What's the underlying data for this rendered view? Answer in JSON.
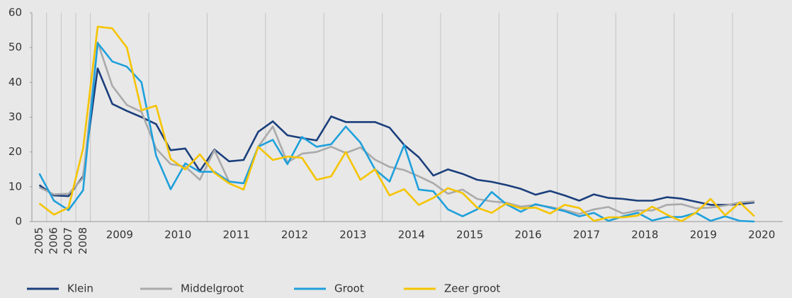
{
  "chart_data": {
    "type": "line",
    "categories": [
      "2005",
      "2006",
      "2007",
      "2008",
      "2009",
      null,
      null,
      null,
      "2010",
      null,
      null,
      null,
      "2011",
      null,
      null,
      null,
      "2012",
      null,
      null,
      null,
      "2013",
      null,
      null,
      null,
      "2014",
      null,
      null,
      null,
      "2015",
      null,
      null,
      null,
      "2016",
      null,
      null,
      null,
      "2017",
      null,
      null,
      null,
      "2018",
      null,
      null,
      null,
      "2019",
      null,
      null,
      null,
      "2020",
      null
    ],
    "series": [
      {
        "name": "Klein",
        "color": "#1b3f7c",
        "values": [
          10.5,
          7.5,
          7.3,
          13,
          44,
          33.8,
          31.8,
          30,
          28,
          20.5,
          21,
          14.5,
          20.7,
          17.3,
          17.7,
          25.8,
          28.8,
          24.8,
          24,
          23.3,
          30.2,
          28.6,
          28.6,
          28.6,
          27,
          22,
          18.5,
          13.2,
          15,
          13.7,
          12,
          11.4,
          10.5,
          9.4,
          7.7,
          8.8,
          7.5,
          6,
          7.8,
          6.8,
          6.5,
          6,
          6,
          7,
          6.6,
          5.7,
          4.8,
          4.8,
          5,
          5.5
        ]
      },
      {
        "name": "Middelgroot",
        "color": "#aaaaaa",
        "values": [
          9.8,
          7.8,
          8,
          12.5,
          51.5,
          39,
          33.5,
          31.5,
          21,
          16.5,
          15.8,
          12,
          20.5,
          11.5,
          11,
          21.5,
          27.3,
          17,
          19.5,
          20,
          21.5,
          19.7,
          21.3,
          17.8,
          15.7,
          14.8,
          13,
          11,
          8,
          9.2,
          6.5,
          5.8,
          5.4,
          4.3,
          4.8,
          4.2,
          3.3,
          2.2,
          3.5,
          4.2,
          2.3,
          3.2,
          3.2,
          4.8,
          5,
          3.8,
          4,
          4.6,
          5.5,
          5.8
        ]
      },
      {
        "name": "Groot",
        "color": "#1fa0dc",
        "values": [
          13.8,
          6,
          3.3,
          9,
          51.3,
          46,
          44.5,
          40,
          19,
          9.3,
          16.7,
          14.3,
          14.3,
          11.5,
          11,
          21.5,
          23.5,
          16.5,
          24.3,
          21.5,
          22.2,
          27.3,
          22.7,
          15,
          11.5,
          22,
          9.2,
          8.7,
          3.5,
          1.5,
          3.5,
          8.5,
          5,
          2.8,
          5,
          4,
          3,
          1.5,
          2.5,
          0.2,
          1.5,
          2.5,
          0.3,
          1.3,
          1.3,
          2.5,
          0.2,
          1.5,
          0.2,
          0
        ]
      },
      {
        "name": "Zeer groot",
        "color": "#f5c400",
        "values": [
          5.2,
          2,
          4,
          21,
          56,
          55.5,
          50,
          32,
          33.3,
          18,
          15,
          19.3,
          14,
          11,
          9.2,
          21.5,
          17.7,
          18.7,
          18.3,
          12,
          13,
          20,
          12,
          15,
          7.5,
          9.3,
          4.8,
          6.8,
          9.6,
          8.2,
          4,
          2.5,
          5.2,
          3.8,
          4,
          2.3,
          4.8,
          3.9,
          0.2,
          1.2,
          1.2,
          1.7,
          4.3,
          2,
          0.1,
          2.6,
          6.5,
          1.8,
          5.5,
          1.5
        ]
      }
    ],
    "ylim": [
      0,
      60
    ],
    "yticks": [
      0,
      10,
      20,
      30,
      40,
      50,
      60
    ],
    "grid_x": true,
    "legend": "bottom"
  }
}
